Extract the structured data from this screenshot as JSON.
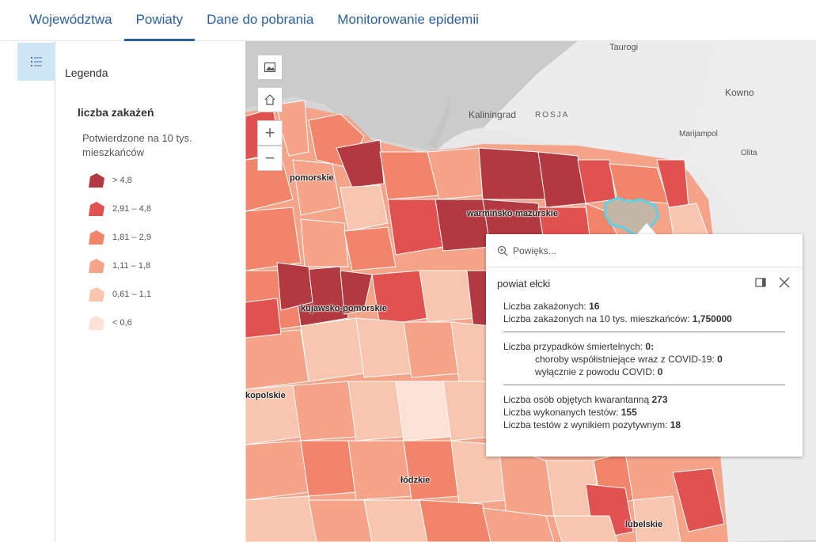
{
  "tabs": [
    {
      "label": "Województwa",
      "active": false
    },
    {
      "label": "Powiaty",
      "active": true
    },
    {
      "label": "Dane do pobrania",
      "active": false
    },
    {
      "label": "Monitorowanie epidemii",
      "active": false
    }
  ],
  "rail": {
    "icon": "legend-list-icon"
  },
  "legend": {
    "title": "Legenda",
    "layer_title": "liczba zakażeń",
    "layer_subtitle": "Potwierdzone na 10 tys. mieszkańców",
    "classes": [
      {
        "label": "> 4,8",
        "color": "#b2393f"
      },
      {
        "label": "2,91 – 4,8",
        "color": "#e0514f"
      },
      {
        "label": "1,81 – 2,9",
        "color": "#f2846a"
      },
      {
        "label": "1,11 – 1,8",
        "color": "#f5a48a"
      },
      {
        "label": "0,61 – 1,1",
        "color": "#f8c5ae"
      },
      {
        "label": "< 0,6",
        "color": "#fbe1d6"
      }
    ]
  },
  "map": {
    "places": {
      "taurogi": "Taurogi",
      "kowno": "Kowno",
      "kaliningrad": "Kaliningrad",
      "rosja": "ROSJA",
      "marijampole": "Marijampol",
      "olita": "Olita"
    },
    "regions": {
      "pomorskie": "pomorskie",
      "warminsko": "warmińsko-mazurskie",
      "kujawsko": "kujawsko-pomorskie",
      "wielkopolskie": "kopolskie",
      "lodzkie": "łódzkie",
      "lubelskie": "lubelskie"
    }
  },
  "popup": {
    "search_placeholder": "Powięks...",
    "title": "powiat ełcki",
    "infections_label": "Liczba zakażonych:",
    "infections_value": "16",
    "per10k_label": "Liczba zakażonych na 10 tys. mieszkańców:",
    "per10k_value": "1,750000",
    "deaths_label": "Liczba przypadków śmiertelnych:",
    "deaths_value": "0:",
    "comorb_label": "choroby współistniejące wraz z COVID-19:",
    "comorb_value": "0",
    "covid_only_label": "wyłącznie z powodu COVID:",
    "covid_only_value": "0",
    "quarantine_label": "Liczba osób objętych kwarantanną",
    "quarantine_value": "273",
    "tests_label": "Liczba wykonanych testów:",
    "tests_value": "155",
    "positive_label": "Liczba testów z wynikiem pozytywnym:",
    "positive_value": "18"
  }
}
